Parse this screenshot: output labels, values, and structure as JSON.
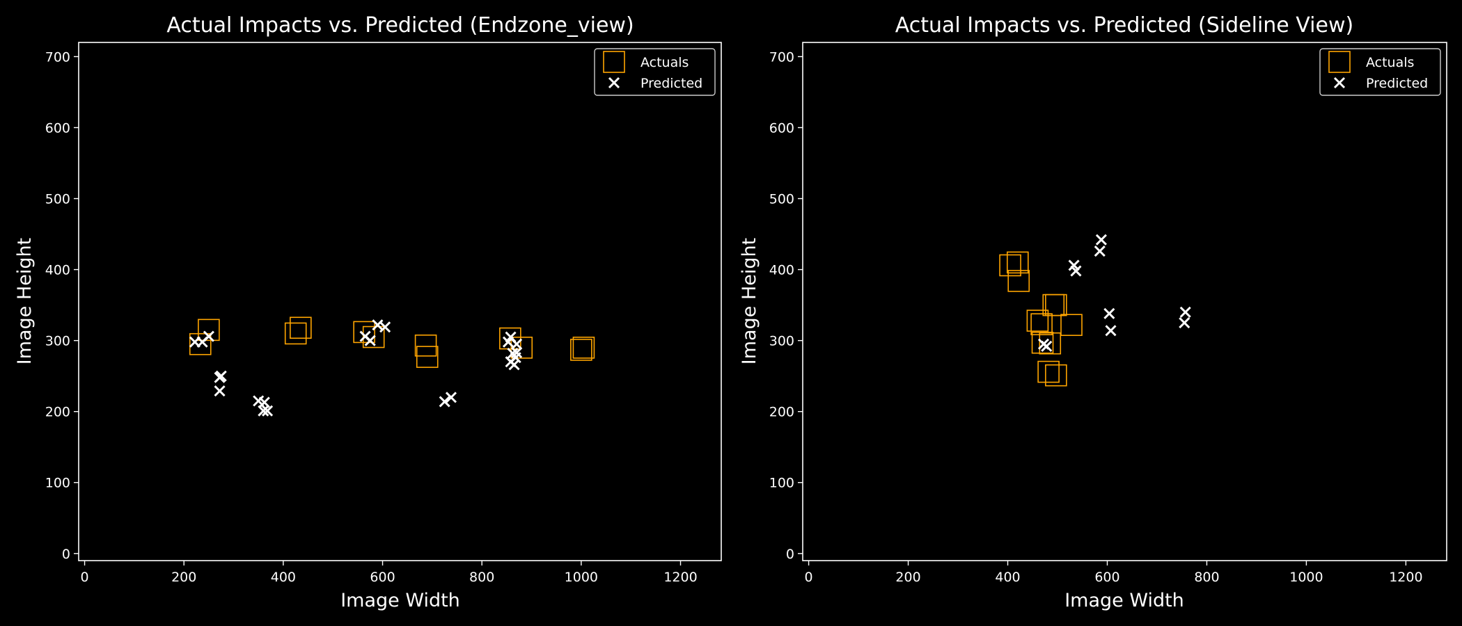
{
  "colors": {
    "background": "#000000",
    "foreground": "#ffffff",
    "actuals": "#ffa500",
    "predicted": "#ffffff"
  },
  "chart_data": [
    {
      "type": "scatter",
      "title": "Actual Impacts vs. Predicted (Endzone_view)",
      "xlabel": "Image Width",
      "ylabel": "Image Height",
      "xlim": [
        -12,
        1282
      ],
      "ylim": [
        -10,
        720
      ],
      "xticks": [
        0,
        200,
        400,
        600,
        800,
        1000,
        1200
      ],
      "yticks": [
        0,
        100,
        200,
        300,
        400,
        500,
        600,
        700
      ],
      "legend": "top-right",
      "grid": false,
      "series": [
        {
          "name": "Actuals",
          "marker": "square",
          "color": "#ffa500",
          "points": [
            [
              233,
              295
            ],
            [
              250,
              315
            ],
            [
              425,
              310
            ],
            [
              435,
              318
            ],
            [
              563,
              312
            ],
            [
              582,
              305
            ],
            [
              687,
              293
            ],
            [
              690,
              277
            ],
            [
              857,
              303
            ],
            [
              880,
              290
            ],
            [
              1000,
              287
            ],
            [
              1005,
              290
            ]
          ]
        },
        {
          "name": "Predicted",
          "marker": "x",
          "color": "#ffffff",
          "points": [
            [
              222,
              298
            ],
            [
              237,
              298
            ],
            [
              250,
              306
            ],
            [
              272,
              248
            ],
            [
              275,
              250
            ],
            [
              272,
              229
            ],
            [
              350,
              215
            ],
            [
              362,
              213
            ],
            [
              360,
              201
            ],
            [
              368,
              201
            ],
            [
              565,
              306
            ],
            [
              575,
              300
            ],
            [
              590,
              322
            ],
            [
              605,
              319
            ],
            [
              725,
              214
            ],
            [
              738,
              220
            ],
            [
              853,
              298
            ],
            [
              858,
              305
            ],
            [
              870,
              295
            ],
            [
              862,
              282
            ],
            [
              870,
              283
            ],
            [
              858,
              270
            ],
            [
              865,
              266
            ],
            [
              868,
              276
            ]
          ]
        }
      ]
    },
    {
      "type": "scatter",
      "title": "Actual Impacts vs. Predicted (Sideline View)",
      "xlabel": "Image Width",
      "ylabel": "Image Height",
      "xlim": [
        -12,
        1282
      ],
      "ylim": [
        -10,
        720
      ],
      "xticks": [
        0,
        200,
        400,
        600,
        800,
        1000,
        1200
      ],
      "yticks": [
        0,
        100,
        200,
        300,
        400,
        500,
        600,
        700
      ],
      "legend": "top-right",
      "grid": false,
      "series": [
        {
          "name": "Actuals",
          "marker": "square",
          "color": "#ffa500",
          "points": [
            [
              405,
              406
            ],
            [
              420,
              410
            ],
            [
              422,
              384
            ],
            [
              460,
              328
            ],
            [
              468,
              323
            ],
            [
              492,
              350
            ],
            [
              497,
              350
            ],
            [
              528,
              322
            ],
            [
              470,
              297
            ],
            [
              485,
              296
            ],
            [
              482,
              256
            ],
            [
              497,
              251
            ]
          ]
        },
        {
          "name": "Predicted",
          "marker": "x",
          "color": "#ffffff",
          "points": [
            [
              472,
              295
            ],
            [
              478,
              292
            ],
            [
              533,
              406
            ],
            [
              537,
              398
            ],
            [
              588,
              442
            ],
            [
              585,
              426
            ],
            [
              604,
              338
            ],
            [
              607,
              314
            ],
            [
              757,
              340
            ],
            [
              755,
              325
            ]
          ]
        }
      ]
    }
  ]
}
